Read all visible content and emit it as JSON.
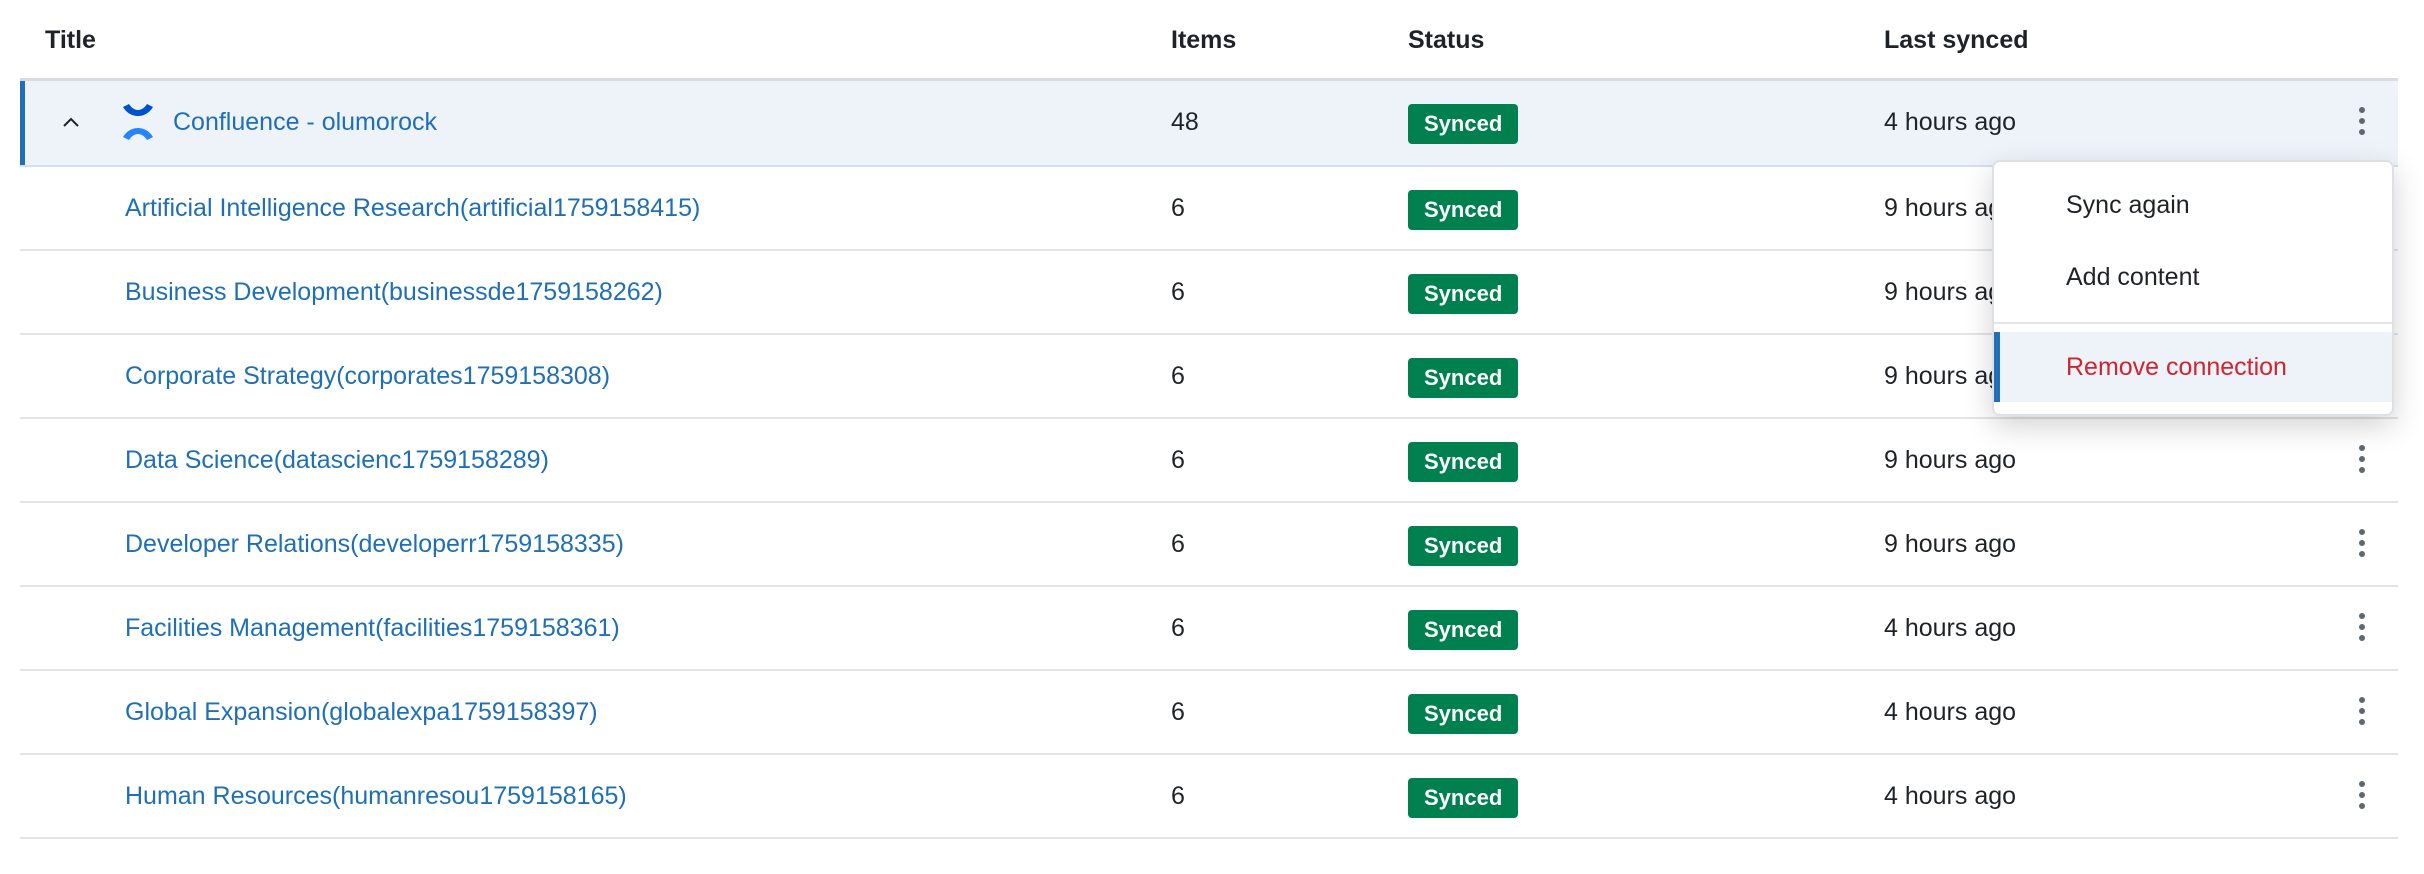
{
  "columns": {
    "title": "Title",
    "items": "Items",
    "status": "Status",
    "last_synced": "Last synced"
  },
  "parent": {
    "title": "Confluence - olumorock",
    "items": "48",
    "status": "Synced",
    "last_synced": "4 hours ago",
    "icon": "confluence-logo",
    "expanded": true
  },
  "rows": [
    {
      "title": "Artificial Intelligence Research(artificial1759158415)",
      "items": "6",
      "status": "Synced",
      "last_synced": "9 hours ago"
    },
    {
      "title": "Business Development(businessde1759158262)",
      "items": "6",
      "status": "Synced",
      "last_synced": "9 hours ago"
    },
    {
      "title": "Corporate Strategy(corporates1759158308)",
      "items": "6",
      "status": "Synced",
      "last_synced": "9 hours ago"
    },
    {
      "title": "Data Science(datascienc1759158289)",
      "items": "6",
      "status": "Synced",
      "last_synced": "9 hours ago"
    },
    {
      "title": "Developer Relations(developerr1759158335)",
      "items": "6",
      "status": "Synced",
      "last_synced": "9 hours ago"
    },
    {
      "title": "Facilities Management(facilities1759158361)",
      "items": "6",
      "status": "Synced",
      "last_synced": "4 hours ago"
    },
    {
      "title": "Global Expansion(globalexpa1759158397)",
      "items": "6",
      "status": "Synced",
      "last_synced": "4 hours ago"
    },
    {
      "title": "Human Resources(humanresou1759158165)",
      "items": "6",
      "status": "Synced",
      "last_synced": "4 hours ago"
    }
  ],
  "menu": {
    "sync_again": "Sync again",
    "add_content": "Add content",
    "remove_connection": "Remove connection"
  },
  "colors": {
    "accent": "#1f70b8",
    "link": "#1f6fb5",
    "status_synced": "#00804f",
    "danger": "#d1242f",
    "selected_row": "#eef3fa"
  }
}
